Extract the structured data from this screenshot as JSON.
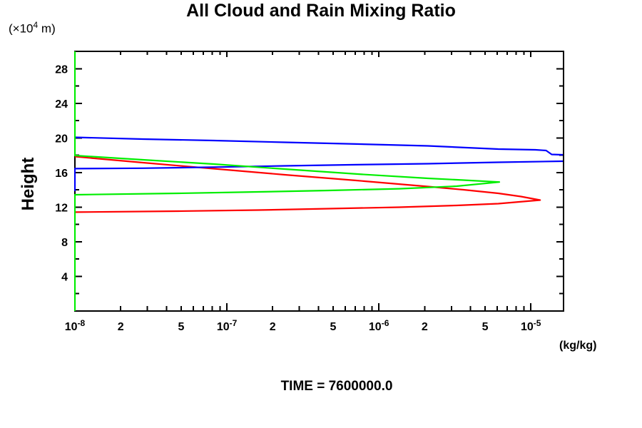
{
  "header": {
    "title": "All Cloud and Rain Mixing Ratio"
  },
  "axes": {
    "y_unit": {
      "prefix": "(×10",
      "exponent": "4",
      "suffix": " m)"
    },
    "y_label": "Height",
    "x_unit": "(kg/kg)"
  },
  "footer": {
    "time_label": "TIME = 7600000.0"
  },
  "colors": {
    "axis": "#000000",
    "red": "#ff0000",
    "blue": "#0000ff",
    "green": "#00ee00"
  },
  "chart_data": {
    "type": "line",
    "title": "All Cloud and Rain Mixing Ratio",
    "xlabel": "(kg/kg)",
    "ylabel": "Height (x10^4 m)",
    "x_scale": "log",
    "xlim": [
      1e-08,
      1.64e-05
    ],
    "ylim": [
      0,
      30
    ],
    "grid": false,
    "legend": "none",
    "x_minor_per_decade": [
      2,
      3,
      4,
      5,
      6,
      7,
      8,
      9
    ],
    "x_decades": [
      -8,
      -7,
      -6,
      -5
    ],
    "x_tick_labels": [
      {
        "value": 1e-08,
        "base": "10",
        "exp": "-8"
      },
      {
        "value": 2e-08,
        "label": "2"
      },
      {
        "value": 5e-08,
        "label": "5"
      },
      {
        "value": 1e-07,
        "base": "10",
        "exp": "-7"
      },
      {
        "value": 2e-07,
        "label": "2"
      },
      {
        "value": 5e-07,
        "label": "5"
      },
      {
        "value": 1e-06,
        "base": "10",
        "exp": "-6"
      },
      {
        "value": 2e-06,
        "label": "2"
      },
      {
        "value": 5e-06,
        "label": "5"
      },
      {
        "value": 1e-05,
        "base": "10",
        "exp": "-5"
      }
    ],
    "y_ticks": {
      "major": [
        4,
        8,
        12,
        16,
        20,
        24,
        28
      ],
      "minor": [
        2,
        6,
        10,
        14,
        18,
        22,
        26,
        30
      ]
    },
    "y_tick_labels": [
      {
        "value": 4,
        "label": "4"
      },
      {
        "value": 8,
        "label": "8"
      },
      {
        "value": 12,
        "label": "12"
      },
      {
        "value": 16,
        "label": "16"
      },
      {
        "value": 20,
        "label": "20"
      },
      {
        "value": 24,
        "label": "24"
      },
      {
        "value": 28,
        "label": "28"
      }
    ],
    "series": [
      {
        "name": "red-profile",
        "color": "#ff0000",
        "points": [
          [
            1e-08,
            17.84
          ],
          [
            2.8e-08,
            17.14
          ],
          [
            8.2e-08,
            16.44
          ],
          [
            2.4e-07,
            15.74
          ],
          [
            7.1e-07,
            15.08
          ],
          [
            2.1e-06,
            14.38
          ],
          [
            3.6e-06,
            14.01
          ],
          [
            6.1e-06,
            13.6
          ],
          [
            8.6e-06,
            13.23
          ],
          [
            1.15e-05,
            12.82
          ],
          [
            6.1e-06,
            12.4
          ],
          [
            3.25e-06,
            12.2
          ],
          [
            1.36e-06,
            11.99
          ],
          [
            4.7e-07,
            11.83
          ],
          [
            1.6e-07,
            11.66
          ],
          [
            4.8e-08,
            11.54
          ],
          [
            1e-08,
            11.42
          ]
        ]
      },
      {
        "name": "blue-profile",
        "color": "#0000ff",
        "points": [
          [
            1e-08,
            20.07
          ],
          [
            2.8e-08,
            19.86
          ],
          [
            8.2e-08,
            19.7
          ],
          [
            2.4e-07,
            19.49
          ],
          [
            7.1e-07,
            19.29
          ],
          [
            2.1e-06,
            19.08
          ],
          [
            6.1e-06,
            18.71
          ],
          [
            1.07e-05,
            18.63
          ],
          [
            1.26e-05,
            18.54
          ],
          [
            1.37e-05,
            18.09
          ],
          [
            1.64e-05,
            18.05
          ],
          [
            2.4e-05,
            17.7
          ],
          [
            1.64e-05,
            17.31
          ],
          [
            6.1e-06,
            17.18
          ],
          [
            2.1e-06,
            17.02
          ],
          [
            7.1e-07,
            16.9
          ],
          [
            2.4e-07,
            16.77
          ],
          [
            8.2e-08,
            16.62
          ],
          [
            2.8e-08,
            16.5
          ],
          [
            1e-08,
            16.45
          ],
          [
            1e-08,
            13.85
          ]
        ]
      },
      {
        "name": "green-profile",
        "color": "#00ee00",
        "points": [
          [
            1e-08,
            30
          ],
          [
            1e-08,
            17.97
          ],
          [
            2.8e-08,
            17.47
          ],
          [
            8.2e-08,
            16.98
          ],
          [
            2.4e-07,
            16.4
          ],
          [
            7.1e-07,
            15.83
          ],
          [
            2.1e-06,
            15.33
          ],
          [
            3.6e-06,
            15.12
          ],
          [
            6.2e-06,
            14.9
          ],
          [
            3.25e-06,
            14.42
          ],
          [
            1.36e-06,
            14.13
          ],
          [
            4.7e-07,
            13.93
          ],
          [
            1.6e-07,
            13.76
          ],
          [
            4.8e-08,
            13.6
          ],
          [
            1e-08,
            13.43
          ],
          [
            1e-08,
            0
          ]
        ]
      }
    ]
  }
}
